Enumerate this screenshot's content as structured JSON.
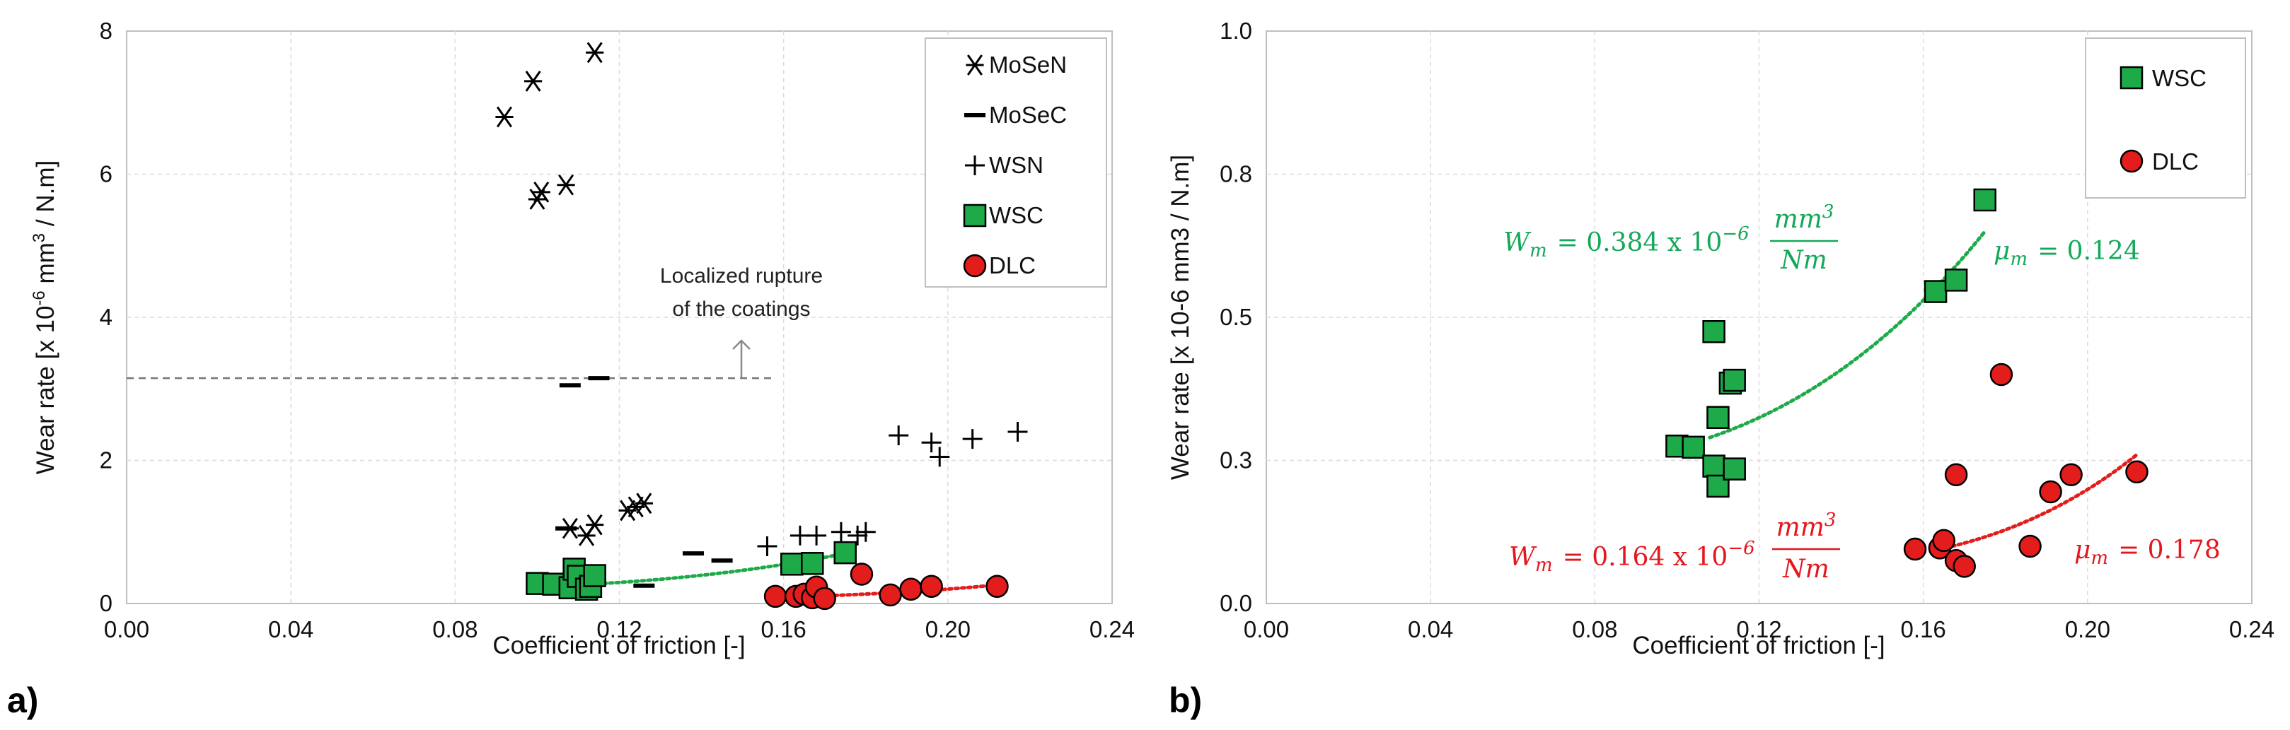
{
  "colors": {
    "wsc": "#1faa4a",
    "dlc": "#e31c1c",
    "wsc_text": "#14a85a",
    "dlc_text": "#e5161d",
    "grid": "#dcdcdc",
    "axis": "#bfbfbf"
  },
  "chart_data": [
    {
      "type": "scatter",
      "panel_label": "a)",
      "xlabel": "Coefficient of friction [-]",
      "ylabel": "Wear rate [x 10",
      "ylabel_sup": "-6",
      "ylabel_mid": " mm",
      "ylabel_sup2": "3",
      "ylabel_end": " / N.m]",
      "xlim": [
        0,
        0.24
      ],
      "ylim": [
        0,
        8
      ],
      "xticks": [
        "0.00",
        "0.04",
        "0.08",
        "0.12",
        "0.16",
        "0.20",
        "0.24"
      ],
      "yticks": [
        "0",
        "2",
        "4",
        "6",
        "8"
      ],
      "legend": [
        "MoSeN",
        "MoSeC",
        "WSN",
        "WSC",
        "DLC"
      ],
      "annotation": {
        "line1": "Localized rupture",
        "line2": "of the coatings",
        "threshold_y": 3.15
      },
      "series": [
        {
          "name": "MoSeN",
          "marker": "asterisk",
          "points": [
            [
              0.092,
              6.8
            ],
            [
              0.099,
              7.3
            ],
            [
              0.114,
              7.7
            ],
            [
              0.1,
              5.65
            ],
            [
              0.101,
              5.75
            ],
            [
              0.107,
              5.85
            ],
            [
              0.108,
              1.05
            ],
            [
              0.112,
              0.95
            ],
            [
              0.114,
              1.1
            ],
            [
              0.122,
              1.3
            ],
            [
              0.124,
              1.35
            ],
            [
              0.126,
              1.4
            ]
          ]
        },
        {
          "name": "MoSeC",
          "marker": "dash",
          "points": [
            [
              0.108,
              3.05
            ],
            [
              0.115,
              3.15
            ],
            [
              0.107,
              1.05
            ],
            [
              0.126,
              0.25
            ],
            [
              0.138,
              0.7
            ],
            [
              0.145,
              0.6
            ]
          ]
        },
        {
          "name": "WSN",
          "marker": "plus",
          "points": [
            [
              0.156,
              0.8
            ],
            [
              0.164,
              0.95
            ],
            [
              0.168,
              0.95
            ],
            [
              0.174,
              1.0
            ],
            [
              0.178,
              0.95
            ],
            [
              0.18,
              1.0
            ],
            [
              0.188,
              2.35
            ],
            [
              0.196,
              2.25
            ],
            [
              0.198,
              2.05
            ],
            [
              0.206,
              2.3
            ],
            [
              0.217,
              2.4
            ]
          ]
        },
        {
          "name": "WSC",
          "marker": "square",
          "points": [
            [
              0.1,
              0.28
            ],
            [
              0.104,
              0.27
            ],
            [
              0.108,
              0.22
            ],
            [
              0.109,
              0.48
            ],
            [
              0.11,
              0.38
            ],
            [
              0.112,
              0.2
            ],
            [
              0.113,
              0.24
            ],
            [
              0.114,
              0.39
            ],
            [
              0.162,
              0.55
            ],
            [
              0.167,
              0.56
            ],
            [
              0.175,
              0.71
            ]
          ]
        },
        {
          "name": "DLC",
          "marker": "circle",
          "points": [
            [
              0.158,
              0.1
            ],
            [
              0.163,
              0.1
            ],
            [
              0.165,
              0.13
            ],
            [
              0.167,
              0.08
            ],
            [
              0.168,
              0.23
            ],
            [
              0.17,
              0.07
            ],
            [
              0.179,
              0.41
            ],
            [
              0.186,
              0.12
            ],
            [
              0.191,
              0.2
            ],
            [
              0.196,
              0.24
            ],
            [
              0.212,
              0.24
            ]
          ]
        }
      ],
      "trendlines": [
        {
          "series": "WSC",
          "from": [
            0.113,
            0.27
          ],
          "to": [
            0.175,
            0.7
          ]
        },
        {
          "series": "DLC",
          "from": [
            0.16,
            0.09
          ],
          "to": [
            0.212,
            0.26
          ]
        }
      ]
    },
    {
      "type": "scatter",
      "panel_label": "b)",
      "xlabel": "Coefficient of friction [-]",
      "ylabel": "Wear rate [x 10-6 mm3 / N.m]",
      "xlim": [
        0,
        0.24
      ],
      "ylim": [
        0,
        1.0
      ],
      "xticks": [
        "0.00",
        "0.04",
        "0.08",
        "0.12",
        "0.16",
        "0.20",
        "0.24"
      ],
      "yticks": [
        "0.0",
        "0.3",
        "0.5",
        "0.8",
        "1.0"
      ],
      "ytick_values": [
        0,
        0.25,
        0.5,
        0.75,
        1.0
      ],
      "legend": [
        "WSC",
        "DLC"
      ],
      "series": [
        {
          "name": "WSC",
          "marker": "square",
          "points": [
            [
              0.1,
              0.275
            ],
            [
              0.104,
              0.273
            ],
            [
              0.109,
              0.475
            ],
            [
              0.109,
              0.24
            ],
            [
              0.11,
              0.205
            ],
            [
              0.11,
              0.325
            ],
            [
              0.113,
              0.385
            ],
            [
              0.114,
              0.39
            ],
            [
              0.114,
              0.235
            ],
            [
              0.163,
              0.545
            ],
            [
              0.168,
              0.565
            ],
            [
              0.175,
              0.705
            ]
          ]
        },
        {
          "name": "DLC",
          "marker": "circle",
          "points": [
            [
              0.158,
              0.095
            ],
            [
              0.164,
              0.097
            ],
            [
              0.165,
              0.11
            ],
            [
              0.168,
              0.075
            ],
            [
              0.168,
              0.225
            ],
            [
              0.17,
              0.065
            ],
            [
              0.179,
              0.4
            ],
            [
              0.186,
              0.1
            ],
            [
              0.191,
              0.195
            ],
            [
              0.196,
              0.225
            ],
            [
              0.212,
              0.23
            ]
          ]
        }
      ],
      "trendlines": [
        {
          "series": "WSC",
          "from": [
            0.108,
            0.29
          ],
          "to": [
            0.175,
            0.65
          ]
        },
        {
          "series": "DLC",
          "from": [
            0.164,
            0.095
          ],
          "to": [
            0.212,
            0.26
          ]
        }
      ],
      "equations": {
        "wsc": {
          "lhs": "W",
          "sub": "m",
          "mid": "= 0.384 x 10",
          "exp": "−6",
          "num": "mm",
          "num_sup": "3",
          "den": "Nm"
        },
        "dlc": {
          "lhs": "W",
          "sub": "m",
          "mid": "= 0.164 x 10",
          "exp": "−6",
          "num": "mm",
          "num_sup": "3",
          "den": "Nm"
        },
        "mu_wsc": {
          "sym": "μ",
          "sub": "m",
          "val": "= 0.124"
        },
        "mu_dlc": {
          "sym": "μ",
          "sub": "m",
          "val": "= 0.178"
        }
      }
    }
  ]
}
